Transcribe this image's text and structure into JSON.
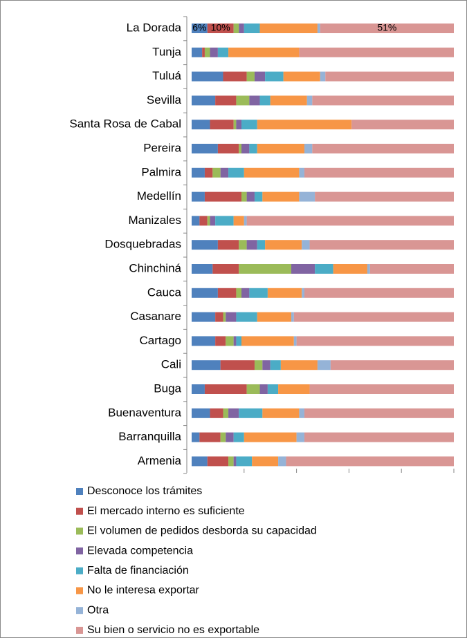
{
  "chart_data": {
    "type": "stacked_bar_horizontal",
    "categories": [
      "La Dorada",
      "Tunja",
      "Tuluá",
      "Sevilla",
      "Santa Rosa de Cabal",
      "Pereira",
      "Palmira",
      "Medellín",
      "Manizales",
      "Dosquebradas",
      "Chinchiná",
      "Cauca",
      "Casanare",
      "Cartago",
      "Cali",
      "Buga",
      "Buenaventura",
      "Barranquilla",
      "Armenia"
    ],
    "series": [
      {
        "name": "Desconoce los trámites",
        "color": "#4f81bd",
        "values": [
          6,
          4,
          12,
          9,
          7,
          10,
          5,
          5,
          3,
          10,
          8,
          10,
          9,
          9,
          11,
          5,
          7,
          3,
          6
        ],
        "value_labels": [
          "6%",
          null,
          null,
          null,
          null,
          null,
          null,
          null,
          null,
          null,
          null,
          null,
          null,
          null,
          null,
          null,
          null,
          null,
          null
        ]
      },
      {
        "name": "El mercado interno es suficiente",
        "color": "#c0504d",
        "values": [
          10,
          1,
          9,
          8,
          9,
          8,
          3,
          14,
          3,
          8,
          10,
          7,
          3,
          4,
          13,
          16,
          5,
          8,
          8
        ],
        "value_labels": [
          "10%",
          null,
          null,
          null,
          null,
          null,
          null,
          null,
          null,
          null,
          null,
          null,
          null,
          null,
          null,
          null,
          null,
          null,
          null
        ]
      },
      {
        "name": "El volumen de pedidos desborda su capacidad",
        "color": "#9bbb59",
        "values": [
          2,
          2,
          3,
          5,
          1,
          1,
          3,
          2,
          1,
          3,
          20,
          2,
          1,
          3,
          3,
          5,
          2,
          2,
          2
        ]
      },
      {
        "name": "Elevada competencia",
        "color": "#8064a2",
        "values": [
          2,
          3,
          4,
          4,
          2,
          3,
          3,
          3,
          2,
          4,
          9,
          3,
          4,
          1,
          3,
          3,
          4,
          3,
          1
        ]
      },
      {
        "name": "Falta de financiación",
        "color": "#4bacc6",
        "values": [
          6,
          4,
          7,
          4,
          6,
          3,
          6,
          3,
          7,
          3,
          7,
          7,
          8,
          2,
          4,
          4,
          9,
          4,
          6
        ]
      },
      {
        "name": "No le interesa exportar",
        "color": "#f79646",
        "values": [
          22,
          27,
          14,
          14,
          36,
          18,
          21,
          14,
          4,
          14,
          13,
          13,
          13,
          20,
          14,
          12,
          14,
          20,
          10
        ],
        "value_labels": [
          null,
          null,
          null,
          null,
          null,
          null,
          null,
          null,
          null,
          null,
          null,
          null,
          null,
          null,
          null,
          null,
          null,
          null,
          null
        ]
      },
      {
        "name": "Otra",
        "color": "#95b3d7",
        "values": [
          1,
          0,
          2,
          2,
          0,
          3,
          2,
          6,
          1,
          3,
          1,
          1,
          1,
          1,
          5,
          0,
          2,
          3,
          3
        ]
      },
      {
        "name": "Su bien o servicio no es exportable",
        "color": "#d99694",
        "values": [
          51,
          59,
          49,
          54,
          39,
          54,
          57,
          53,
          79,
          55,
          32,
          57,
          61,
          60,
          47,
          55,
          57,
          57,
          64
        ],
        "value_labels": [
          "51%",
          null,
          null,
          null,
          null,
          null,
          null,
          null,
          null,
          null,
          null,
          null,
          null,
          null,
          null,
          null,
          null,
          null,
          null
        ]
      }
    ],
    "xlim": [
      0,
      100
    ],
    "xticks": [
      0,
      20,
      40,
      60,
      80,
      100
    ]
  }
}
